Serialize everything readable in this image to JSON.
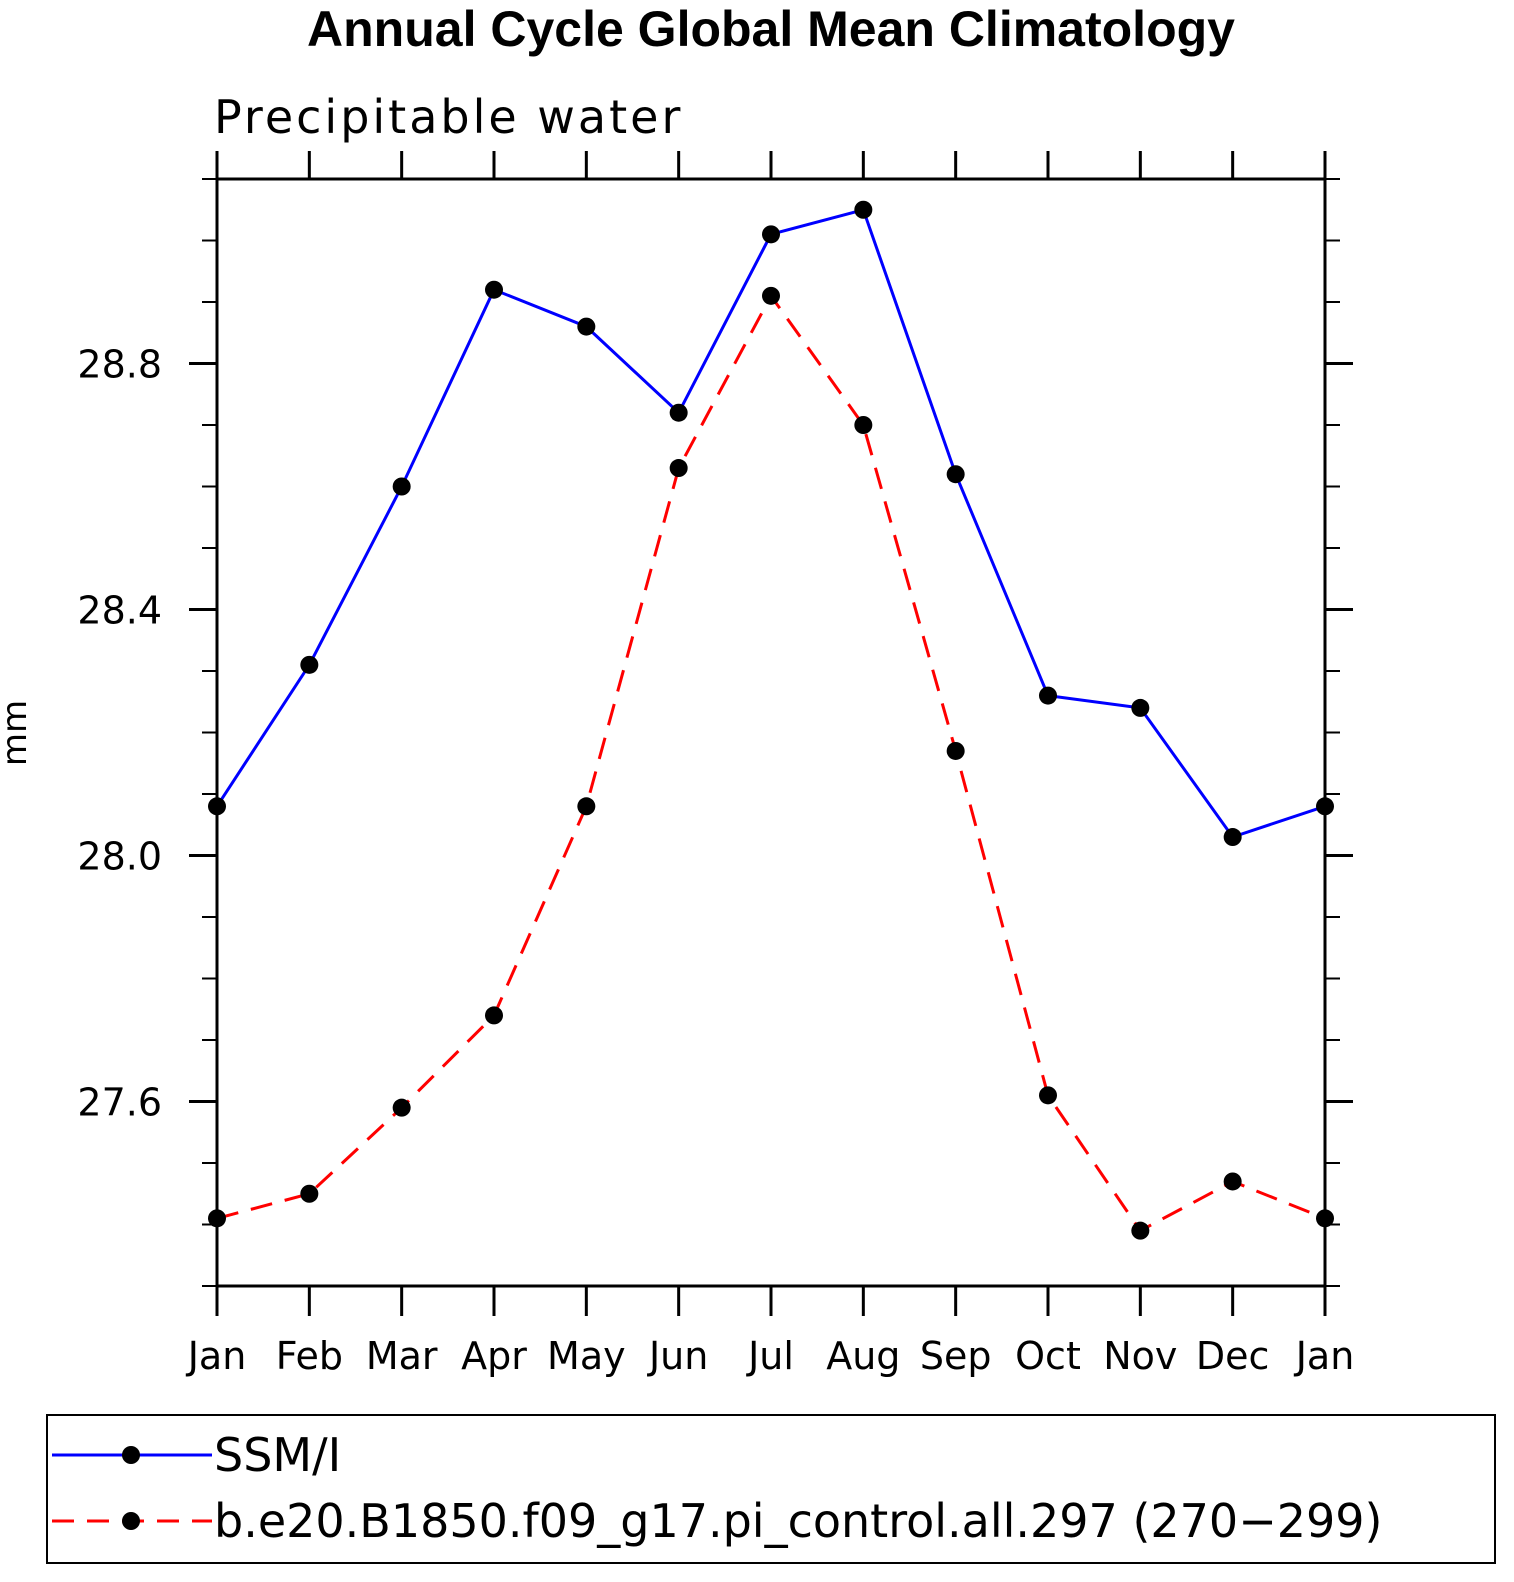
{
  "chart_data": {
    "type": "line",
    "title": "Annual Cycle Global Mean Climatology",
    "subtitle": "Precipitable water",
    "xlabel": "",
    "ylabel": "mm",
    "categories": [
      "Jan",
      "Feb",
      "Mar",
      "Apr",
      "May",
      "Jun",
      "Jul",
      "Aug",
      "Sep",
      "Oct",
      "Nov",
      "Dec",
      "Jan"
    ],
    "ylim": [
      27.3,
      29.1
    ],
    "yticks": [
      27.6,
      28.0,
      28.4,
      28.8
    ],
    "ytick_labels": [
      "27.6",
      "28.0",
      "28.4",
      "28.8"
    ],
    "yminor_step": 0.1,
    "grid": false,
    "legend_position": "bottom",
    "series": [
      {
        "name": "SSM/I",
        "color": "#0000ff",
        "dash": "solid",
        "values": [
          28.08,
          28.31,
          28.6,
          28.92,
          28.86,
          28.72,
          29.01,
          29.05,
          28.62,
          28.26,
          28.24,
          28.03,
          28.08
        ]
      },
      {
        "name": "b.e20.B1850.f09_g17.pi_control.all.297 (270−299)",
        "color": "#ff0000",
        "dash": "dashed",
        "values": [
          27.41,
          27.45,
          27.59,
          27.74,
          28.08,
          28.63,
          28.91,
          28.7,
          28.17,
          27.61,
          27.39,
          27.47,
          27.41
        ]
      }
    ]
  }
}
